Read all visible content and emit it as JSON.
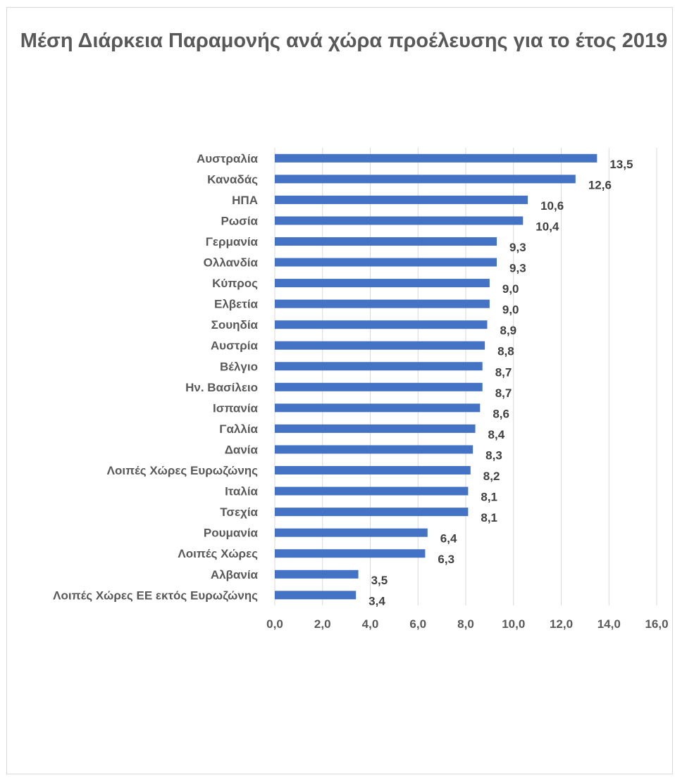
{
  "chart_data": {
    "type": "bar",
    "orientation": "horizontal",
    "title": "Μέση Διάρκεια Παραμονής ανά χώρα προέλευσης για το έτος 2019",
    "xlabel": "",
    "ylabel": "",
    "xlim": [
      0,
      16
    ],
    "x_ticks": [
      "0,0",
      "2,0",
      "4,0",
      "6,0",
      "8,0",
      "10,0",
      "12,0",
      "14,0",
      "16,0"
    ],
    "grid": true,
    "legend": "none",
    "bar_color": "#4472c4",
    "categories": [
      "Αυστραλία",
      "Καναδάς",
      "ΗΠΑ",
      "Ρωσία",
      "Γερμανία",
      "Ολλανδία",
      "Κύπρος",
      "Ελβετία",
      "Σουηδία",
      "Αυστρία",
      "Βέλγιο",
      "Ην. Βασίλειο",
      "Ισπανία",
      "Γαλλία",
      "Δανία",
      "Λοιπές Χώρες Ευρωζώνης",
      "Ιταλία",
      "Τσεχία",
      "Ρουμανία",
      "Λοιπές Χώρες",
      "Αλβανία",
      "Λοιπές Χώρες ΕΕ εκτός Ευρωζώνης"
    ],
    "values": [
      13.5,
      12.6,
      10.6,
      10.4,
      9.3,
      9.3,
      9.0,
      9.0,
      8.9,
      8.8,
      8.7,
      8.7,
      8.6,
      8.4,
      8.3,
      8.2,
      8.1,
      8.1,
      6.4,
      6.3,
      3.5,
      3.4
    ],
    "data_labels": [
      "13,5",
      "12,6",
      "10,6",
      "10,4",
      "9,3",
      "9,3",
      "9,0",
      "9,0",
      "8,9",
      "8,8",
      "8,7",
      "8,7",
      "8,6",
      "8,4",
      "8,3",
      "8,2",
      "8,1",
      "8,1",
      "6,4",
      "6,3",
      "3,5",
      "3,4"
    ]
  }
}
